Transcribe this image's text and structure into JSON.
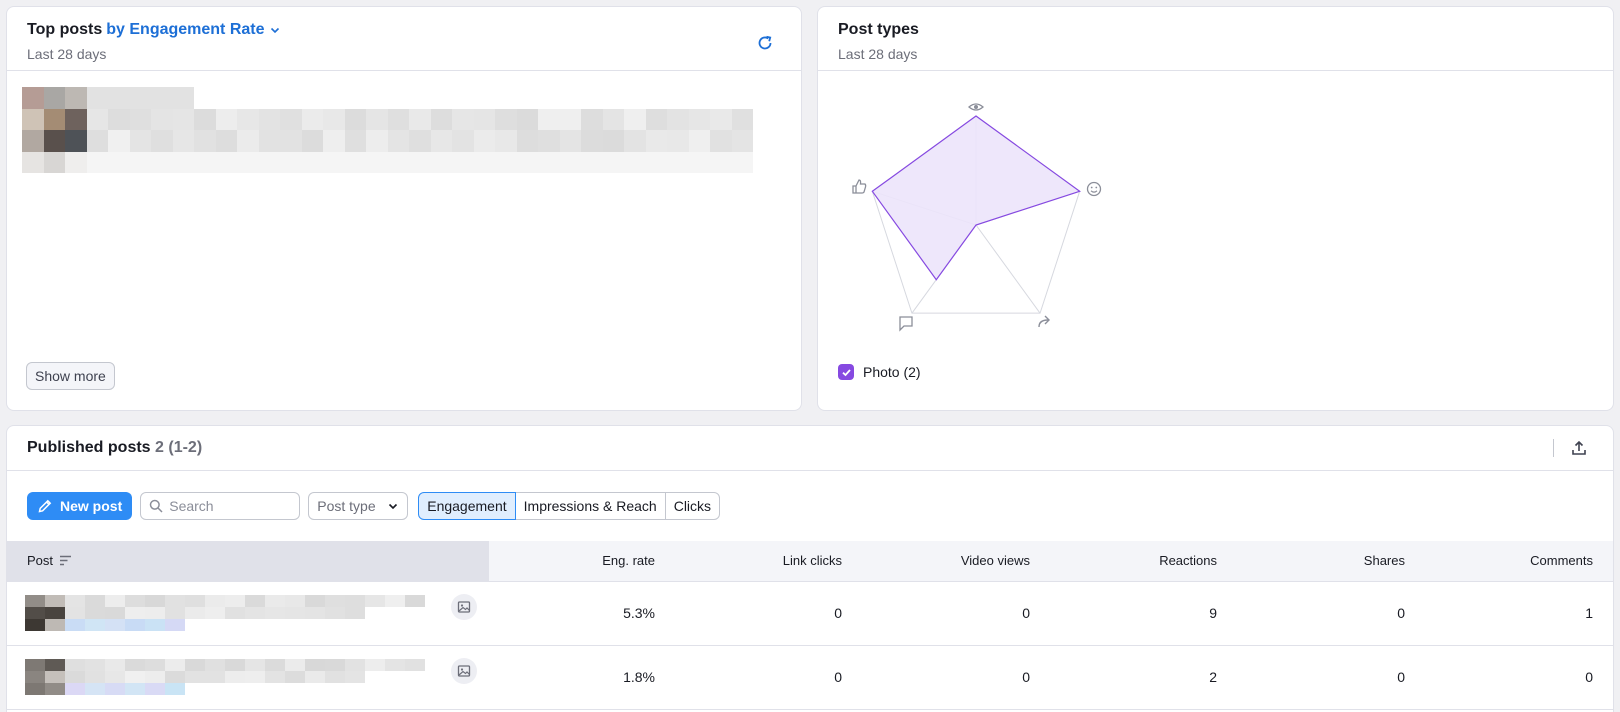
{
  "top_posts": {
    "title": "Top posts",
    "metric": "by Engagement Rate",
    "subtitle": "Last 28 days",
    "show_more": "Show more"
  },
  "post_types": {
    "title": "Post types",
    "subtitle": "Last 28 days",
    "legend": "Photo (2)",
    "accent": "#8649e1",
    "fill": "#ece4fb",
    "axes": [
      "impressions-eye-icon",
      "reactions-smile-icon",
      "shares-arrow-icon",
      "comments-bubble-icon",
      "likes-thumb-icon"
    ],
    "values": [
      1.0,
      1.0,
      0.0,
      0.62,
      1.0
    ]
  },
  "published": {
    "title": "Published posts",
    "count": "2 (1-2)",
    "new_post": "New post",
    "search_placeholder": "Search",
    "post_type": "Post type",
    "tabs": [
      "Engagement",
      "Impressions & Reach",
      "Clicks"
    ],
    "columns": [
      "Post",
      "Eng. rate",
      "Link clicks",
      "Video views",
      "Reactions",
      "Shares",
      "Comments"
    ],
    "rows": [
      {
        "eng_rate": "5.3%",
        "link_clicks": "0",
        "video_views": "0",
        "reactions": "9",
        "shares": "0",
        "comments": "1"
      },
      {
        "eng_rate": "1.8%",
        "link_clicks": "0",
        "video_views": "0",
        "reactions": "2",
        "shares": "0",
        "comments": "0"
      }
    ]
  }
}
